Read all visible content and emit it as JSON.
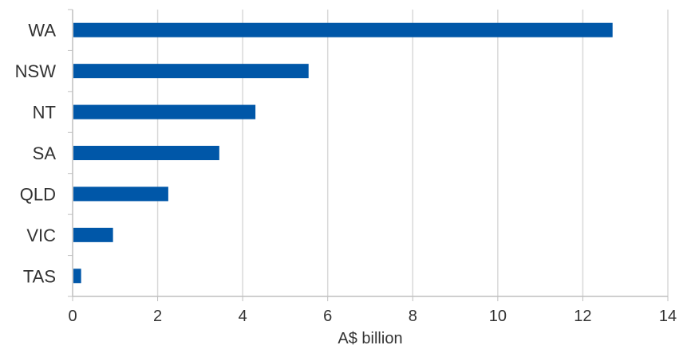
{
  "chart_data": {
    "type": "bar",
    "orientation": "horizontal",
    "categories": [
      "WA",
      "NSW",
      "NT",
      "SA",
      "QLD",
      "VIC",
      "TAS"
    ],
    "values": [
      12.7,
      5.55,
      4.3,
      3.45,
      2.25,
      0.95,
      0.2
    ],
    "title": "",
    "xlabel": "A$ billion",
    "ylabel": "",
    "xlim": [
      0,
      14
    ],
    "xticks": [
      0,
      2,
      4,
      6,
      8,
      10,
      12,
      14
    ],
    "grid": "vertical",
    "bar_color": "#0057a8",
    "grid_color": "#d9d9d9",
    "axis_color": "#bfbfbf"
  }
}
